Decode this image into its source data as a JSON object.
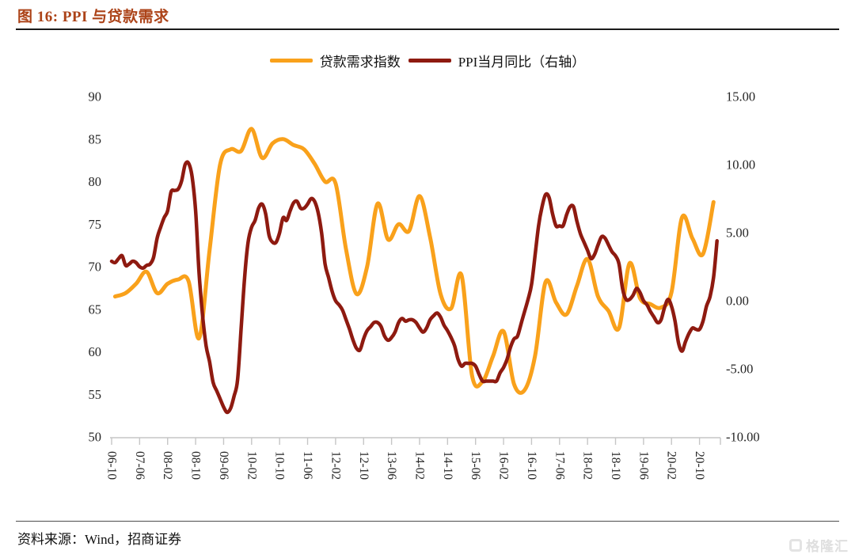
{
  "chart_data": {
    "type": "line",
    "title": "图 16: PPI 与贷款需求",
    "grid": false,
    "legend_position": "top-center",
    "x_axis": {
      "start_month": "2006-10",
      "months_total": 174,
      "tick_every_months": 8,
      "tick_labels": [
        "06-10",
        "07-06",
        "08-02",
        "08-10",
        "09-06",
        "10-02",
        "10-10",
        "11-06",
        "12-02",
        "12-10",
        "13-06",
        "14-02",
        "14-10",
        "15-06",
        "16-02",
        "16-10",
        "17-06",
        "18-02",
        "18-10",
        "19-06",
        "20-02",
        "20-10"
      ]
    },
    "left_axis": {
      "min": 50,
      "max": 90,
      "ticks": [
        "90",
        "85",
        "80",
        "75",
        "70",
        "65",
        "60",
        "55",
        "50"
      ]
    },
    "right_axis": {
      "min": -10,
      "max": 15,
      "ticks": [
        "15.00",
        "10.00",
        "5.00",
        "0.00",
        "-5.00",
        "-10.00"
      ]
    },
    "series": [
      {
        "name": "贷款需求指数",
        "axis": "left",
        "color": "#F9A11B",
        "stroke_width": 5,
        "interval_months": 3,
        "start_month_offset": 1,
        "frequency": "quarterly",
        "values": [
          66.5,
          66.9,
          68.0,
          69.4,
          66.9,
          68.0,
          68.5,
          68.3,
          61.6,
          72.0,
          82.0,
          83.8,
          83.6,
          86.2,
          82.8,
          84.5,
          85.0,
          84.3,
          83.8,
          82.1,
          80.0,
          79.8,
          72.0,
          66.8,
          70.0,
          77.4,
          73.2,
          75.0,
          74.2,
          78.3,
          73.5,
          66.8,
          65.1,
          69.0,
          57.2,
          56.5,
          59.5,
          62.4,
          56.2,
          55.5,
          59.5,
          68.2,
          65.8,
          64.4,
          67.8,
          70.9,
          66.5,
          64.8,
          62.8,
          70.4,
          66.3,
          65.6,
          65.2,
          67.0,
          75.8,
          73.3,
          71.5,
          77.6
        ]
      },
      {
        "name": "PPI当月同比（右轴）",
        "axis": "right",
        "color": "#8E1A10",
        "stroke_width": 4.5,
        "interval_months": 1,
        "start_month_offset": 0,
        "frequency": "monthly",
        "values": [
          2.9,
          2.8,
          3.1,
          3.3,
          2.6,
          2.7,
          2.9,
          2.8,
          2.5,
          2.4,
          2.6,
          2.7,
          3.2,
          4.6,
          5.4,
          6.1,
          6.6,
          8.0,
          8.1,
          8.2,
          8.8,
          10.0,
          10.1,
          9.1,
          6.6,
          2.0,
          -1.1,
          -3.3,
          -4.5,
          -6.0,
          -6.6,
          -7.2,
          -7.8,
          -8.2,
          -7.9,
          -7.0,
          -5.8,
          -2.1,
          1.7,
          4.3,
          5.4,
          5.9,
          6.8,
          7.1,
          6.4,
          4.8,
          4.3,
          4.3,
          5.0,
          6.1,
          5.9,
          6.6,
          7.2,
          7.3,
          6.8,
          6.8,
          7.1,
          7.5,
          7.3,
          6.5,
          5.0,
          2.7,
          1.7,
          0.7,
          0.0,
          -0.3,
          -0.7,
          -1.4,
          -2.1,
          -2.9,
          -3.5,
          -3.6,
          -2.8,
          -2.2,
          -1.9,
          -1.6,
          -1.6,
          -1.9,
          -2.6,
          -2.9,
          -2.7,
          -2.3,
          -1.6,
          -1.3,
          -1.5,
          -1.4,
          -1.4,
          -1.6,
          -2.0,
          -2.3,
          -2.0,
          -1.4,
          -1.1,
          -0.9,
          -1.2,
          -1.8,
          -2.2,
          -2.7,
          -3.3,
          -4.3,
          -4.8,
          -4.6,
          -4.6,
          -4.6,
          -4.8,
          -5.4,
          -5.9,
          -5.9,
          -5.9,
          -5.9,
          -5.9,
          -5.3,
          -4.9,
          -4.3,
          -3.4,
          -2.8,
          -2.6,
          -1.7,
          -0.8,
          0.1,
          1.2,
          3.3,
          5.5,
          6.9,
          7.8,
          7.6,
          6.4,
          5.5,
          5.5,
          5.5,
          6.3,
          6.9,
          6.9,
          5.8,
          4.9,
          4.3,
          3.7,
          3.1,
          3.4,
          4.1,
          4.7,
          4.6,
          4.1,
          3.6,
          3.3,
          2.7,
          0.9,
          0.1,
          0.1,
          0.4,
          0.9,
          0.6,
          0.0,
          -0.3,
          -0.8,
          -1.2,
          -1.6,
          -1.4,
          -0.5,
          0.1,
          -0.4,
          -1.5,
          -3.1,
          -3.7,
          -3.0,
          -2.4,
          -2.0,
          -2.1,
          -2.1,
          -1.5,
          -0.4,
          0.3,
          1.7,
          4.4
        ]
      }
    ],
    "colors": {
      "title": "#AC4318",
      "axis_line": "#C6C6C6",
      "tick_text": "#262626"
    }
  },
  "footer": {
    "source": "资料来源：Wind，招商证券"
  },
  "watermark": {
    "text": "格隆汇",
    "icon": "gelonghui-logo"
  }
}
